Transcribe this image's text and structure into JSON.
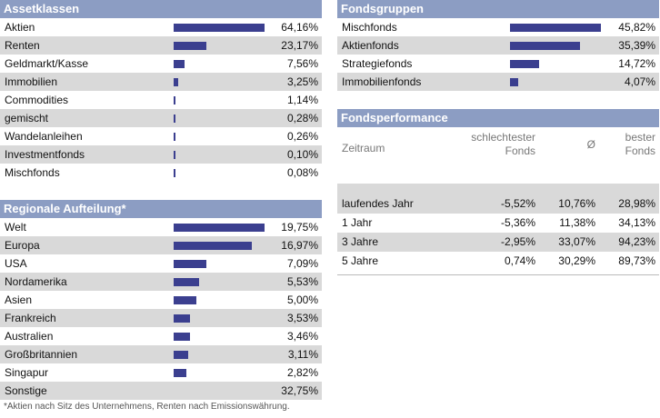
{
  "assetklassen": {
    "title": "Assetklassen",
    "rows": [
      {
        "label": "Aktien",
        "value": "64,16%",
        "share": 64.16
      },
      {
        "label": "Renten",
        "value": "23,17%",
        "share": 23.17
      },
      {
        "label": "Geldmarkt/Kasse",
        "value": "7,56%",
        "share": 7.56
      },
      {
        "label": "Immobilien",
        "value": "3,25%",
        "share": 3.25
      },
      {
        "label": "Commodities",
        "value": "1,14%",
        "share": 1.14
      },
      {
        "label": "gemischt",
        "value": "0,28%",
        "share": 0.28
      },
      {
        "label": "Wandelanleihen",
        "value": "0,26%",
        "share": 0.26
      },
      {
        "label": "Investmentfonds",
        "value": "0,10%",
        "share": 0.1
      },
      {
        "label": "Mischfonds",
        "value": "0,08%",
        "share": 0.08
      }
    ]
  },
  "regionale_aufteilung": {
    "title": "Regionale Aufteilung*",
    "rows": [
      {
        "label": "Welt",
        "value": "19,75%",
        "share": 19.75
      },
      {
        "label": "Europa",
        "value": "16,97%",
        "share": 16.97
      },
      {
        "label": "USA",
        "value": "7,09%",
        "share": 7.09
      },
      {
        "label": "Nordamerika",
        "value": "5,53%",
        "share": 5.53
      },
      {
        "label": "Asien",
        "value": "5,00%",
        "share": 5.0
      },
      {
        "label": "Frankreich",
        "value": "3,53%",
        "share": 3.53
      },
      {
        "label": "Australien",
        "value": "3,46%",
        "share": 3.46
      },
      {
        "label": "Großbritannien",
        "value": "3,11%",
        "share": 3.11
      },
      {
        "label": "Singapur",
        "value": "2,82%",
        "share": 2.82
      },
      {
        "label": "Sonstige",
        "value": "32,75%",
        "share": null
      }
    ],
    "footnote": "*Aktien nach Sitz des Unternehmens, Renten nach Emissionswährung."
  },
  "fondsgruppen": {
    "title": "Fondsgruppen",
    "rows": [
      {
        "label": "Mischfonds",
        "value": "45,82%",
        "share": 45.82
      },
      {
        "label": "Aktienfonds",
        "value": "35,39%",
        "share": 35.39
      },
      {
        "label": "Strategiefonds",
        "value": "14,72%",
        "share": 14.72
      },
      {
        "label": "Immobilienfonds",
        "value": "4,07%",
        "share": 4.07
      }
    ]
  },
  "fondsperformance": {
    "title": "Fondsperformance",
    "columns": {
      "zeitraum": "Zeitraum",
      "worst_line1": "schlechtester",
      "worst_line2": "Fonds",
      "avg": "Ø",
      "best_line1": "bester",
      "best_line2": "Fonds"
    },
    "rows": [
      {
        "period": "laufendes Jahr",
        "worst": "-5,52%",
        "avg": "10,76%",
        "best": "28,98%"
      },
      {
        "period": "1 Jahr",
        "worst": "-5,36%",
        "avg": "11,38%",
        "best": "34,13%"
      },
      {
        "period": "3 Jahre",
        "worst": "-2,95%",
        "avg": "33,07%",
        "best": "94,23%"
      },
      {
        "period": "5 Jahre",
        "worst": "0,74%",
        "avg": "30,29%",
        "best": "89,73%"
      }
    ]
  },
  "colors": {
    "header_bg": "#8c9dc3",
    "bar": "#3b3f8f",
    "row_alt": "#d9d9d9"
  }
}
